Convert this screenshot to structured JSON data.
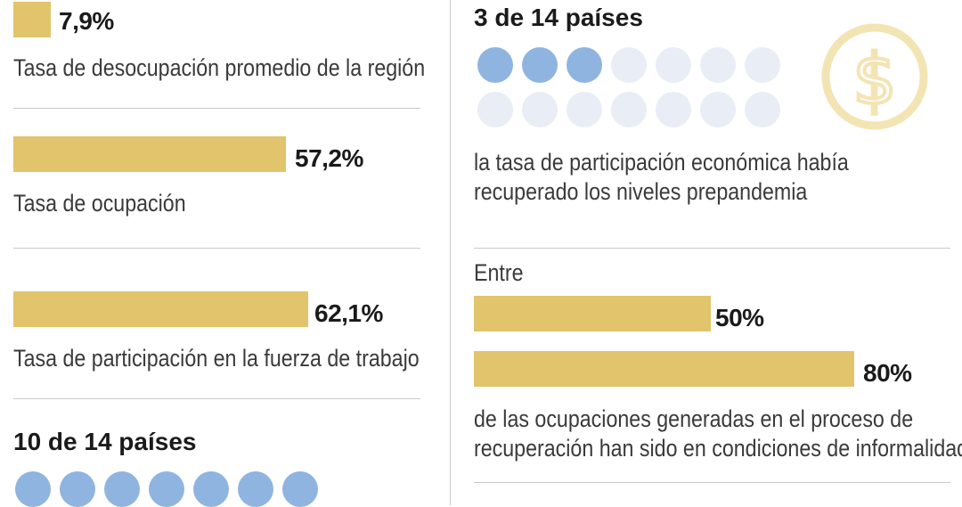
{
  "chart_data": {
    "type": "bar",
    "left": {
      "bars": [
        {
          "value": 7.9,
          "value_label": "7,9%",
          "label": "Tasa de desocupación promedio de la región"
        },
        {
          "value": 57.2,
          "value_label": "57,2%",
          "label": "Tasa de ocupación"
        },
        {
          "value": 62.1,
          "value_label": "62,1%",
          "label": "Tasa de participación en la fuerza de trabajo"
        }
      ],
      "countries": {
        "title": "10 de 14 países",
        "highlighted": 10,
        "total": 14
      }
    },
    "right": {
      "countries": {
        "title": "3 de 14 países",
        "highlighted": 3,
        "total": 14,
        "caption_lines": [
          "la tasa de participación económica había",
          "recuperado los niveles prepandemia"
        ]
      },
      "informality": {
        "intro": "Entre",
        "bars": [
          {
            "value": 50,
            "value_label": "50%"
          },
          {
            "value": 80,
            "value_label": "80%"
          }
        ],
        "caption_lines": [
          "de las ocupaciones generadas en el proceso de",
          "recuperación han sido en condiciones de informalidad"
        ]
      }
    },
    "colors": {
      "bar": "#e1c46b",
      "dot_active": "#8fb4e0",
      "dot_inactive": "#e9edf5",
      "coin": "#f3e4b3"
    }
  },
  "icons": {
    "coin": "dollar-coin-icon"
  }
}
